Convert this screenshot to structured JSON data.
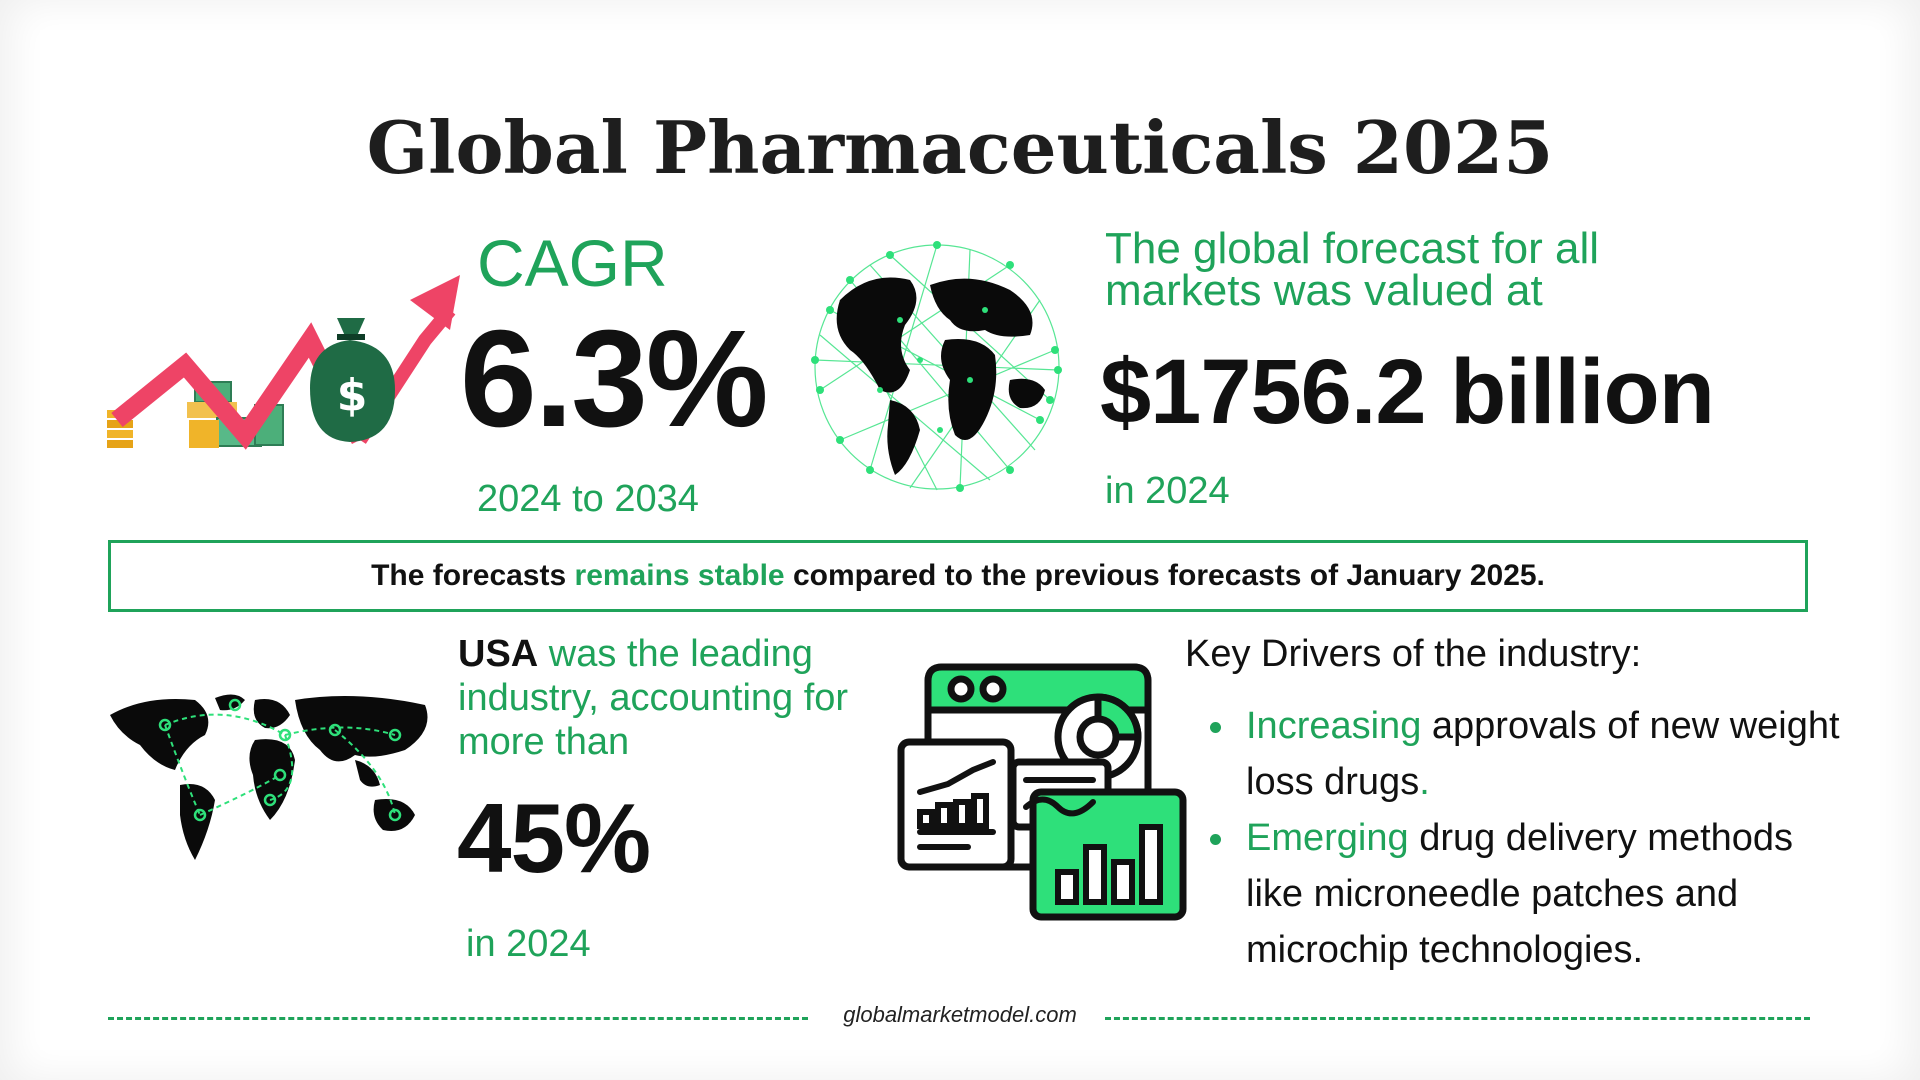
{
  "title": "Global Pharmaceuticals 2025",
  "cagr": {
    "label": "CAGR",
    "value": "6.3%",
    "period": "2024 to 2034"
  },
  "forecast": {
    "caption": "The global forecast for all markets was valued at",
    "value": "$1756.2 billion",
    "year": "in 2024"
  },
  "stability": {
    "prefix": "The forecasts ",
    "highlight": "remains stable",
    "suffix": " compared to the previous forecasts of January 2025."
  },
  "usa": {
    "bold": "USA",
    "caption": " was the leading industry, accounting for more than",
    "value": "45%",
    "year": "in 2024"
  },
  "drivers": {
    "title": "Key Drivers of the industry:",
    "items": [
      {
        "highlight": "Increasing",
        "text": " approvals of new weight loss drugs",
        "trail": "."
      },
      {
        "highlight": "Emerging",
        "text": " drug delivery methods like microneedle patches and microchip technologies.",
        "trail": ""
      }
    ]
  },
  "footer": {
    "source": "globalmarketmodel.com"
  },
  "colors": {
    "accent": "#1fa35a",
    "chart_bright": "#2ee07a",
    "arrow": "#ee4466",
    "text": "#111111"
  },
  "icons": [
    "growth-money-icon",
    "wireframe-globe-icon",
    "world-map-routes-icon",
    "analytics-dashboard-icon"
  ]
}
